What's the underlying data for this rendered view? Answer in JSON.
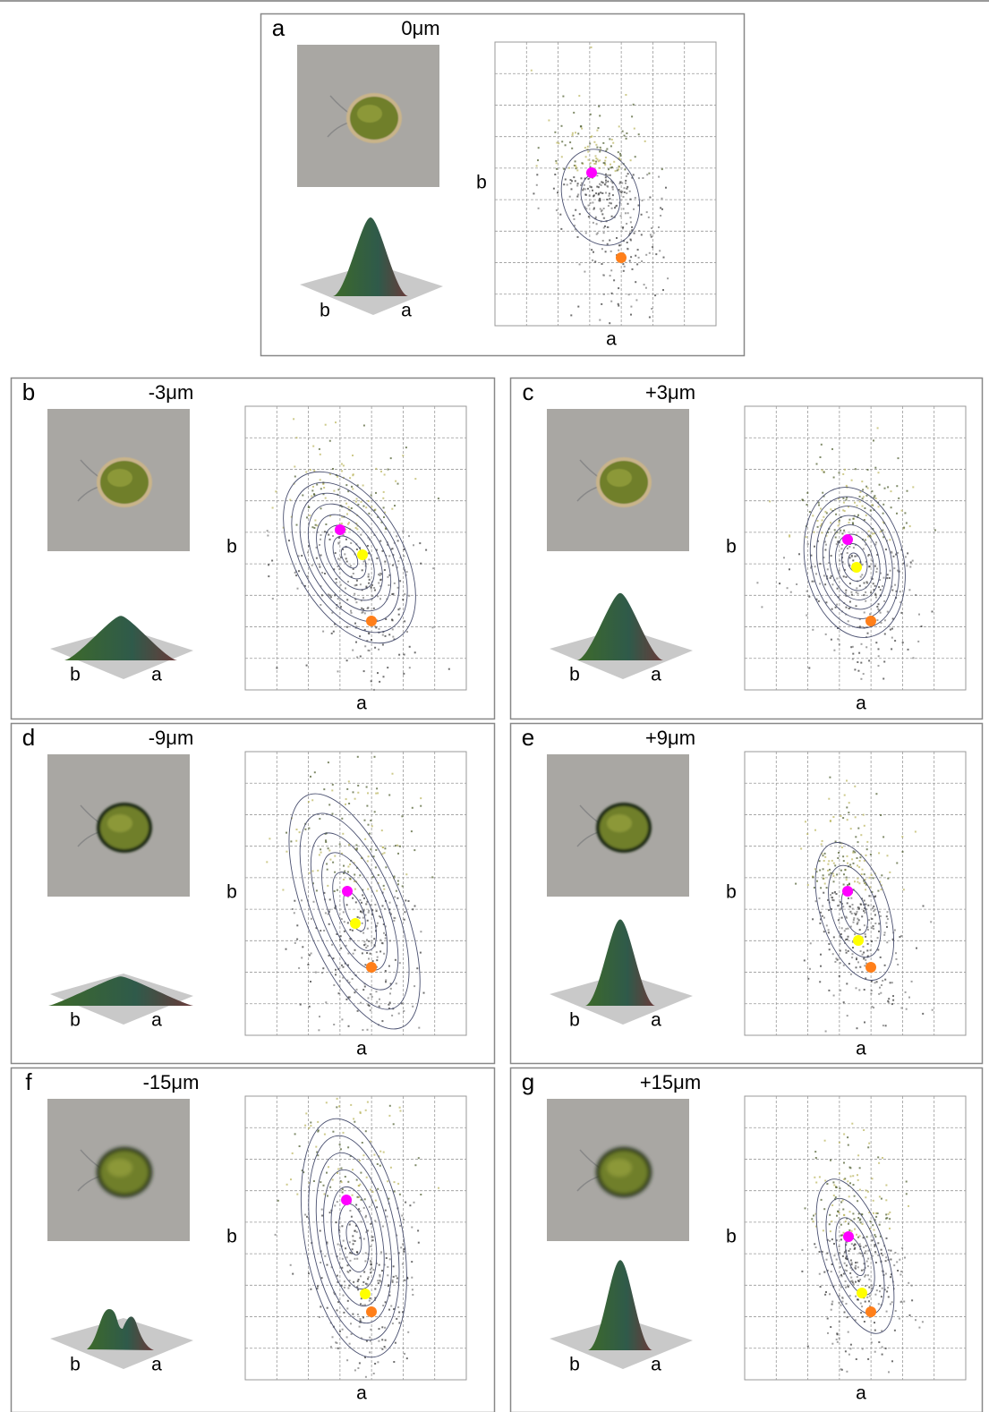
{
  "panels": [
    {
      "label": "a",
      "depth": "0μm",
      "plot_x_label": "a",
      "plot_y_label": "b",
      "surface_labels": [
        "b",
        "a"
      ]
    },
    {
      "label": "b",
      "depth": "-3μm",
      "plot_x_label": "a",
      "plot_y_label": "b",
      "surface_labels": [
        "b",
        "a"
      ]
    },
    {
      "label": "c",
      "depth": "+3μm",
      "plot_x_label": "a",
      "plot_y_label": "b",
      "surface_labels": [
        "b",
        "a"
      ]
    },
    {
      "label": "d",
      "depth": "-9μm",
      "plot_x_label": "a",
      "plot_y_label": "b",
      "surface_labels": [
        "b",
        "a"
      ]
    },
    {
      "label": "e",
      "depth": "+9μm",
      "plot_x_label": "a",
      "plot_y_label": "b",
      "surface_labels": [
        "b",
        "a"
      ]
    },
    {
      "label": "f",
      "depth": "-15μm",
      "plot_x_label": "a",
      "plot_y_label": "b",
      "surface_labels": [
        "b",
        "a"
      ]
    },
    {
      "label": "g",
      "depth": "+15μm",
      "plot_x_label": "a",
      "plot_y_label": "b",
      "surface_labels": [
        "b",
        "a"
      ]
    }
  ]
}
